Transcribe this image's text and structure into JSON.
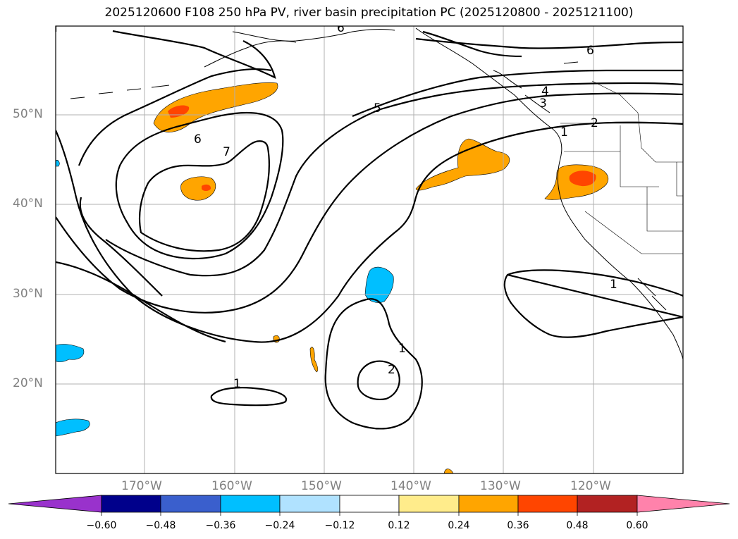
{
  "title": "2025120600 F108 250 hPa PV, river basin precipitation PC (2025120800 - 2025121100)",
  "lat_labels": [
    "50°N",
    "40°N",
    "30°N",
    "20°N"
  ],
  "lon_labels": [
    "170°W",
    "160°W",
    "150°W",
    "140°W",
    "130°W",
    "120°W"
  ],
  "contour_labels": [
    "6",
    "5",
    "4",
    "3",
    "2",
    "6",
    "7",
    "1",
    "1",
    "1",
    "2",
    "1"
  ],
  "colorbar": {
    "labels": [
      "−0.60",
      "−0.48",
      "−0.36",
      "−0.24",
      "−0.12",
      "0.12",
      "0.24",
      "0.36",
      "0.48",
      "0.60"
    ],
    "colors": [
      "#9932CC",
      "#00008B",
      "#3A5FCD",
      "#00BFFF",
      "#B0E2FF",
      "#FFFFFF",
      "#FFEC8B",
      "#FFA500",
      "#FF4500",
      "#B22222",
      "#FF82AB"
    ]
  }
}
